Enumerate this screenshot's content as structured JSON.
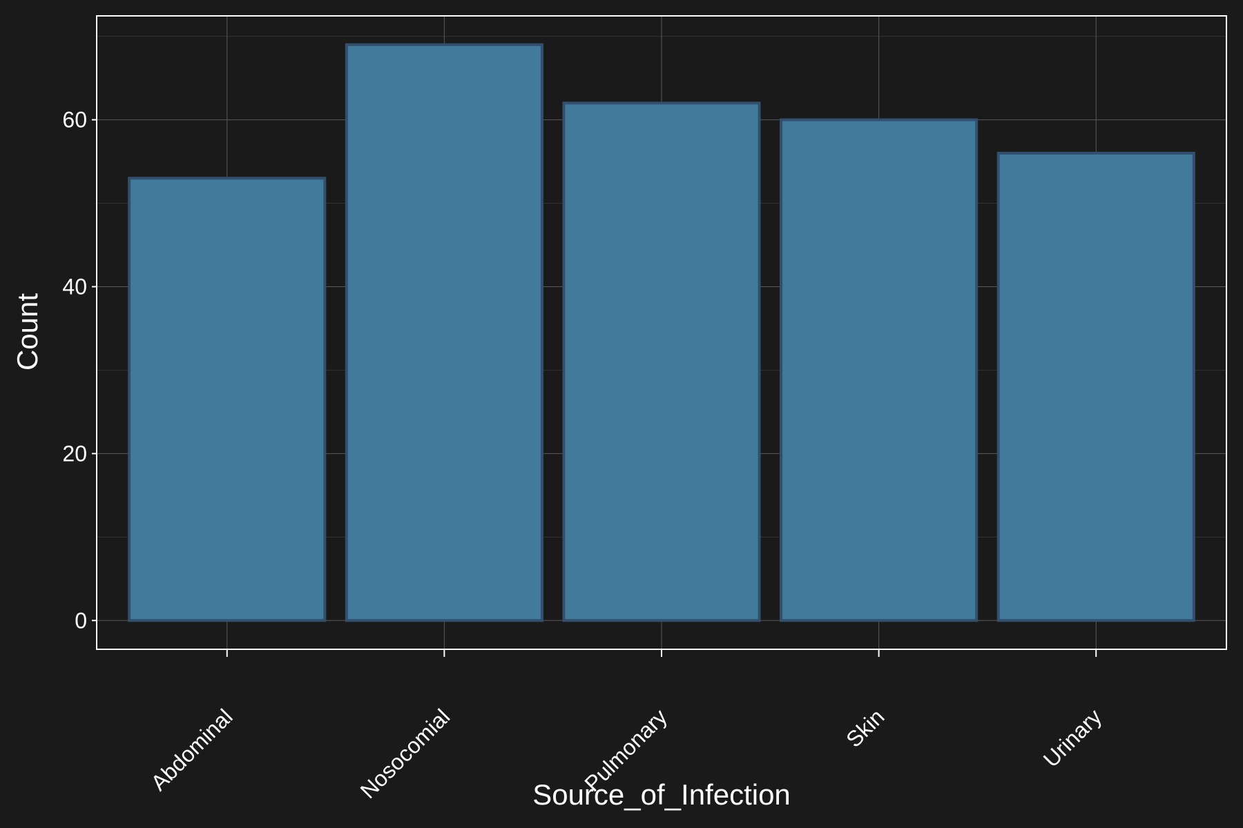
{
  "colors": {
    "background": "#1a1a1a",
    "panel_border": "#ffffff",
    "grid_major": "#5a5a5a",
    "grid_minor": "#333333",
    "bar_fill": "#427a9c",
    "bar_stroke": "#334f6e",
    "text": "#ffffff"
  },
  "chart_data": {
    "type": "bar",
    "categories": [
      "Abdominal",
      "Nosocomial",
      "Pulmonary",
      "Skin",
      "Urinary"
    ],
    "values": [
      53,
      69,
      62,
      60,
      56
    ],
    "xlabel": "Source_of_Infection",
    "ylabel": "Count",
    "ylim": [
      -3.45,
      72.45
    ],
    "yticks": [
      0,
      20,
      40,
      60
    ],
    "ytick_labels": [
      "0",
      "20",
      "40",
      "60"
    ],
    "grid": true,
    "legend": "none"
  }
}
